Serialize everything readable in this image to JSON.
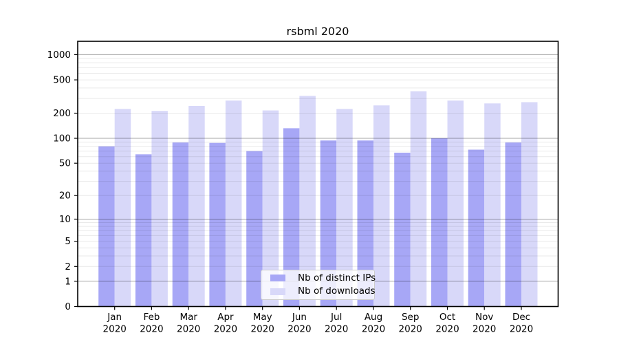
{
  "chart_data": {
    "type": "bar",
    "title": "rsbml 2020",
    "categories": [
      {
        "month": "Jan",
        "year": "2020"
      },
      {
        "month": "Feb",
        "year": "2020"
      },
      {
        "month": "Mar",
        "year": "2020"
      },
      {
        "month": "Apr",
        "year": "2020"
      },
      {
        "month": "May",
        "year": "2020"
      },
      {
        "month": "Jun",
        "year": "2020"
      },
      {
        "month": "Jul",
        "year": "2020"
      },
      {
        "month": "Aug",
        "year": "2020"
      },
      {
        "month": "Sep",
        "year": "2020"
      },
      {
        "month": "Oct",
        "year": "2020"
      },
      {
        "month": "Nov",
        "year": "2020"
      },
      {
        "month": "Dec",
        "year": "2020"
      }
    ],
    "series": [
      {
        "name": "Nb of distinct IPs",
        "color": "#a7a7f6",
        "values": [
          80,
          64,
          89,
          88,
          70,
          132,
          94,
          94,
          67,
          100,
          73,
          89
        ]
      },
      {
        "name": "Nb of downloads",
        "color": "#d8d8f9",
        "values": [
          225,
          213,
          244,
          283,
          216,
          322,
          225,
          248,
          366,
          283,
          262,
          271
        ]
      }
    ],
    "yticks": [
      0,
      1,
      2,
      5,
      10,
      20,
      50,
      100,
      200,
      500,
      1000
    ],
    "scale": "log10(value+1)",
    "ylim": [
      0,
      1400
    ],
    "grid": "on",
    "legend_position": "lower center",
    "colors": {
      "axis": "#000000",
      "major_gridline": "#a6a6a6",
      "minor_gridline": "#e8e8e8"
    }
  }
}
